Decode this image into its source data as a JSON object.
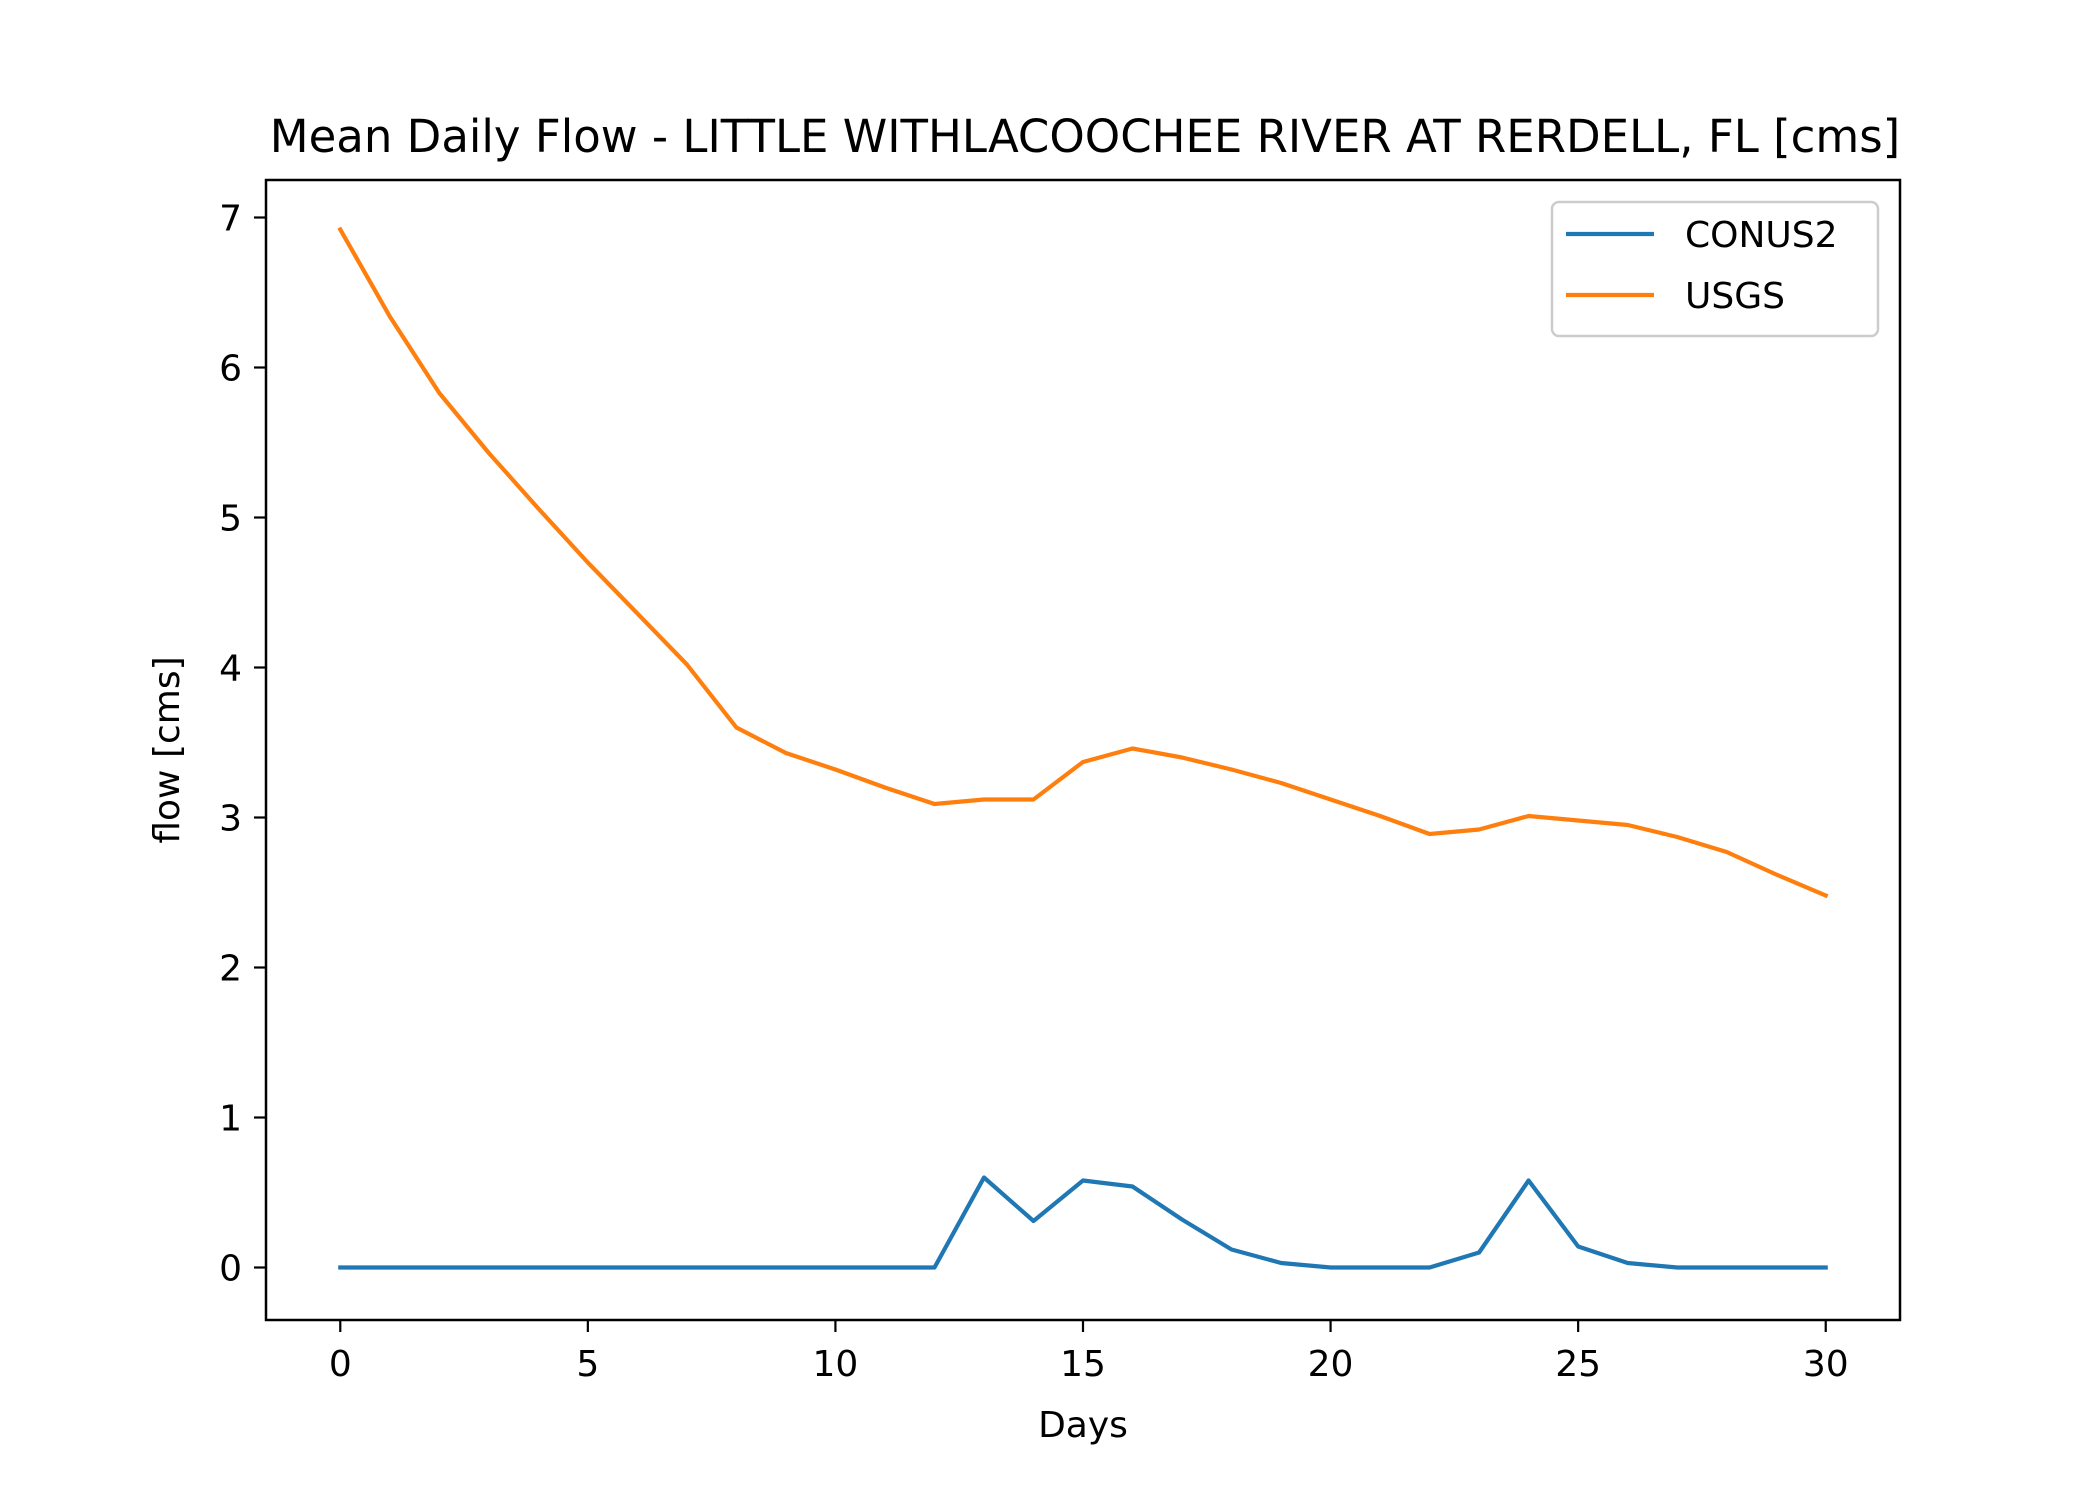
{
  "chart_data": {
    "type": "line",
    "title": "Mean Daily Flow - LITTLE WITHLACOOCHEE RIVER AT RERDELL, FL [cms]",
    "xlabel": "Days",
    "ylabel": "flow [cms]",
    "xlim": [
      -1.5,
      31.5
    ],
    "ylim": [
      -0.35,
      7.25
    ],
    "xticks": [
      0,
      5,
      10,
      15,
      20,
      25,
      30
    ],
    "yticks": [
      0,
      1,
      2,
      3,
      4,
      5,
      6,
      7
    ],
    "grid": false,
    "legend_position": "top-right",
    "x": [
      0,
      1,
      2,
      3,
      4,
      5,
      6,
      7,
      8,
      9,
      10,
      11,
      12,
      13,
      14,
      15,
      16,
      17,
      18,
      19,
      20,
      21,
      22,
      23,
      24,
      25,
      26,
      27,
      28,
      29,
      30
    ],
    "series": [
      {
        "name": "CONUS2",
        "color": "#1f77b4",
        "values": [
          0.0,
          0.0,
          0.0,
          0.0,
          0.0,
          0.0,
          0.0,
          0.0,
          0.0,
          0.0,
          0.0,
          0.0,
          0.0,
          0.6,
          0.31,
          0.58,
          0.54,
          0.32,
          0.12,
          0.03,
          0.0,
          0.0,
          0.0,
          0.1,
          0.58,
          0.14,
          0.03,
          0.0,
          0.0,
          0.0,
          0.0
        ]
      },
      {
        "name": "USGS",
        "color": "#ff7f0e",
        "values": [
          6.92,
          6.34,
          5.83,
          5.43,
          5.06,
          4.7,
          4.36,
          4.02,
          3.6,
          3.43,
          3.32,
          3.2,
          3.09,
          3.12,
          3.12,
          3.37,
          3.46,
          3.4,
          3.32,
          3.23,
          3.12,
          3.01,
          2.89,
          2.92,
          3.01,
          2.98,
          2.95,
          2.87,
          2.77,
          2.62,
          2.48
        ]
      }
    ]
  }
}
